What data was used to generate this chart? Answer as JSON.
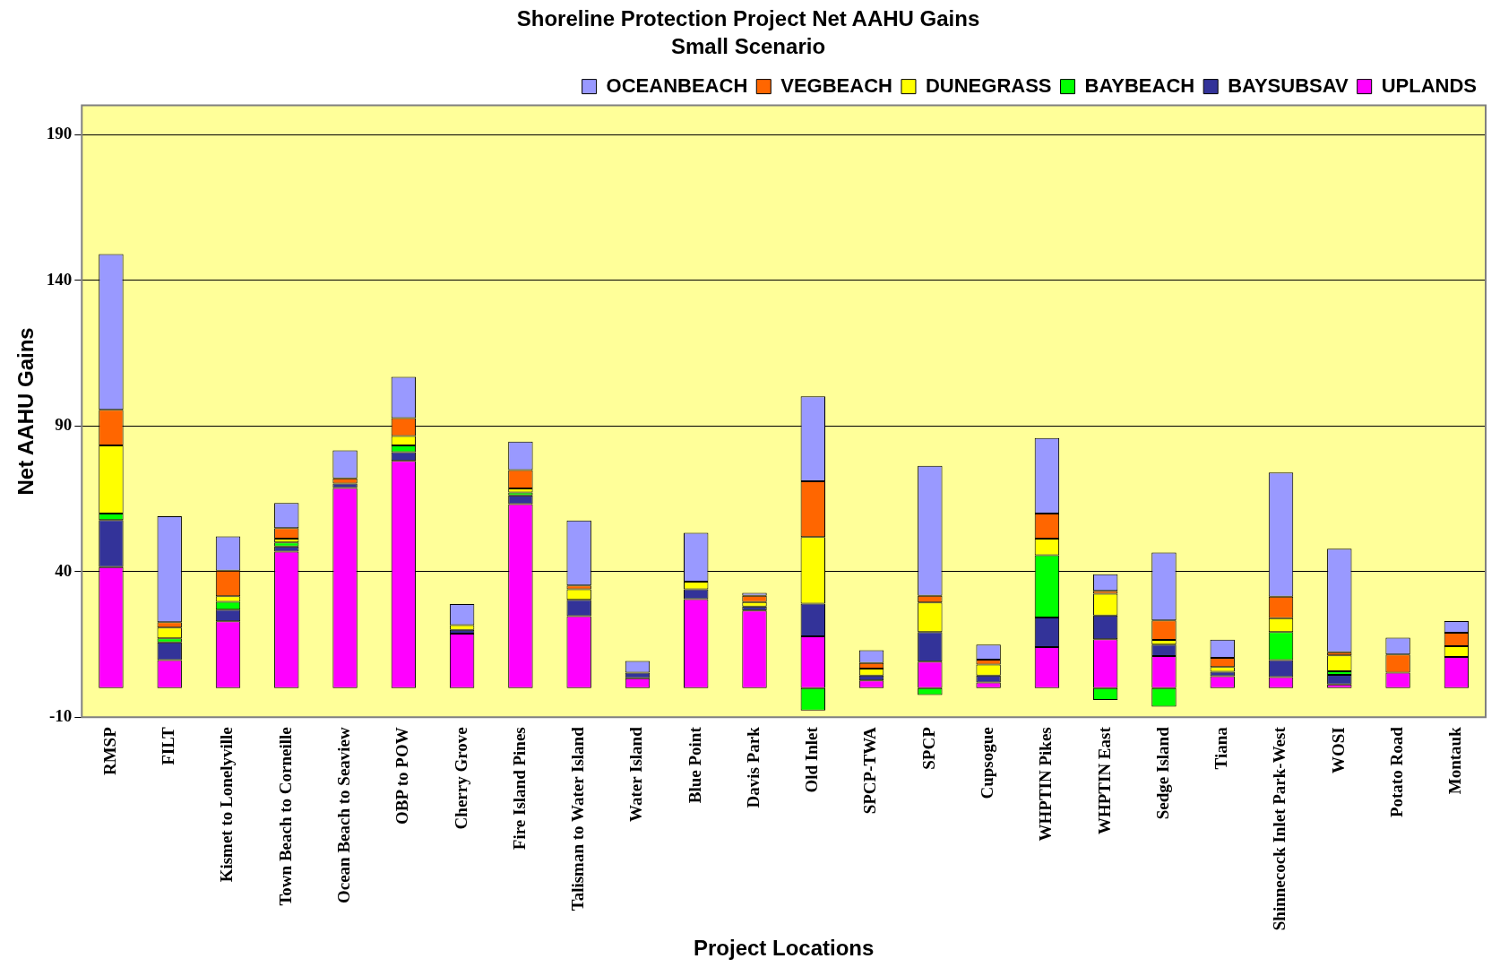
{
  "chart_data": {
    "type": "bar",
    "title": "Shoreline Protection Project Net AAHU Gains",
    "subtitle": "Small Scenario",
    "xlabel": "Project Locations",
    "ylabel": "Net AAHU Gains",
    "stacked": true,
    "legend": "top right",
    "grid": "y",
    "ylim": [
      -10,
      200
    ],
    "yticks": [
      -10,
      40,
      90,
      140,
      190
    ],
    "categories": [
      "RMSP",
      "FILT",
      "Kismet to Lonelyville",
      "Town Beach to Corneille",
      "Ocean Beach to Seaview",
      "OBP to POW",
      "Cherry Grove",
      "Fire Island Pines",
      "Talisman to Water Island",
      "Water Island",
      "Blue Point",
      "Davis Park",
      "Old Inlet",
      "SPCP-TWA",
      "SPCP",
      "Cupsogue",
      "WHPTIN Pikes",
      "WHPTIN East",
      "Sedge Island",
      "Tiana",
      "Shinnecock Inlet Park-West",
      "WOSI",
      "Potato Road",
      "Montauk"
    ],
    "series": [
      {
        "name": "UPLANDS",
        "color": "#ff00ff",
        "values": [
          41.5,
          9.6,
          22.9,
          46.8,
          68.7,
          78.0,
          18.7,
          63.1,
          24.7,
          3.4,
          30.5,
          26.6,
          17.8,
          2.6,
          9.1,
          1.9,
          14.1,
          16.8,
          11.0,
          4.1,
          3.8,
          1.2,
          5.3,
          10.7
        ]
      },
      {
        "name": "BAYSUBSAV",
        "color": "#333399",
        "values": [
          16.2,
          6.1,
          4.0,
          1.8,
          1.5,
          3.0,
          1.3,
          3.0,
          5.6,
          1.9,
          3.4,
          1.4,
          11.2,
          1.7,
          10.1,
          2.4,
          10.1,
          8.1,
          3.9,
          1.5,
          5.8,
          3.3,
          0,
          0
        ]
      },
      {
        "name": "BAYBEACH",
        "color": "#00ff00",
        "values": [
          2.2,
          1.4,
          2.7,
          1.4,
          0,
          2.3,
          0,
          1.0,
          0,
          0,
          0,
          0,
          -7.7,
          0,
          -2.4,
          0,
          21.4,
          -4.1,
          -6.4,
          0,
          9.6,
          1.3,
          0,
          0
        ]
      },
      {
        "name": "DUNEGRASS",
        "color": "#ffff00",
        "values": [
          23.4,
          3.7,
          1.9,
          1.3,
          0,
          3.2,
          1.6,
          1.4,
          3.6,
          0,
          2.6,
          1.5,
          22.8,
          2.4,
          10.2,
          3.8,
          5.7,
          7.5,
          1.6,
          1.6,
          4.8,
          5.4,
          0,
          3.7
        ]
      },
      {
        "name": "VEGBEACH",
        "color": "#ff6600",
        "values": [
          12.2,
          1.8,
          8.8,
          3.6,
          1.8,
          6.2,
          0,
          6.3,
          1.3,
          0,
          0,
          2.2,
          19.2,
          1.9,
          2.3,
          1.7,
          8.6,
          1.0,
          6.7,
          3.2,
          7.4,
          1.1,
          6.2,
          4.6
        ]
      },
      {
        "name": "OCEANBEACH",
        "color": "#9999ff",
        "values": [
          53.5,
          36.4,
          11.8,
          8.6,
          9.6,
          14.1,
          7.2,
          9.8,
          22.3,
          4.0,
          16.8,
          1.0,
          29.1,
          4.4,
          44.6,
          5.1,
          25.9,
          5.7,
          23.3,
          6.2,
          42.6,
          35.5,
          5.8,
          4.0
        ]
      }
    ]
  }
}
